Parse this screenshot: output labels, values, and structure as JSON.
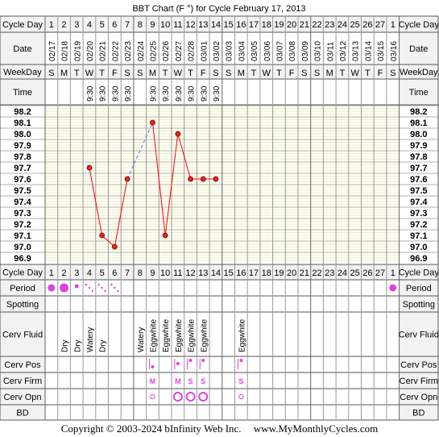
{
  "title": "BBT Chart (F °) for Cycle February 17, 2013",
  "labels": {
    "cycle_day": "Cycle Day",
    "date": "Date",
    "weekday": "WeekDay",
    "time": "Time",
    "period": "Period",
    "spotting": "Spotting",
    "cerv_fluid": "Cerv Fluid",
    "cerv_pos": "Cerv Pos",
    "cerv_firm": "Cerv Firm",
    "cerv_opn": "Cerv Opn",
    "bd": "BD"
  },
  "colors": {
    "grid_bg": "#FFFFF0",
    "header_bg": "#F2F2F2",
    "line": "#FF0000",
    "gap_line": "#6A6AE8",
    "point_fill": "#EE2222",
    "marker": "#DD44DD"
  },
  "days": [
    {
      "cd": "1",
      "date": "02/17",
      "wd": "S",
      "time": "",
      "period": "heavy",
      "fluid": "",
      "pos": "",
      "firm": "",
      "opn": ""
    },
    {
      "cd": "2",
      "date": "02/18",
      "wd": "M",
      "time": "",
      "period": "heavier",
      "fluid": "Dry",
      "pos": "",
      "firm": "",
      "opn": ""
    },
    {
      "cd": "3",
      "date": "02/19",
      "wd": "T",
      "time": "",
      "period": "medium",
      "fluid": "Dry",
      "pos": "",
      "firm": "",
      "opn": ""
    },
    {
      "cd": "4",
      "date": "02/20",
      "wd": "W",
      "time": "9:30",
      "period": "light",
      "fluid": "Watery",
      "pos": "",
      "firm": "",
      "opn": ""
    },
    {
      "cd": "5",
      "date": "02/21",
      "wd": "T",
      "time": "9:30",
      "period": "light",
      "fluid": "Dry",
      "pos": "",
      "firm": "",
      "opn": ""
    },
    {
      "cd": "6",
      "date": "02/22",
      "wd": "F",
      "time": "9:30",
      "period": "light",
      "fluid": "",
      "pos": "",
      "firm": "",
      "opn": ""
    },
    {
      "cd": "7",
      "date": "02/23",
      "wd": "S",
      "time": "9:30",
      "period": "",
      "fluid": "",
      "pos": "",
      "firm": "",
      "opn": ""
    },
    {
      "cd": "8",
      "date": "02/24",
      "wd": "S",
      "time": "",
      "period": "",
      "fluid": "Watery",
      "pos": "",
      "firm": "",
      "opn": ""
    },
    {
      "cd": "9",
      "date": "02/25",
      "wd": "M",
      "time": "9:30",
      "period": "",
      "fluid": "Eggwhite",
      "pos": "low",
      "firm": "M",
      "opn": "small"
    },
    {
      "cd": "10",
      "date": "02/26",
      "wd": "T",
      "time": "9:30",
      "period": "",
      "fluid": "Eggwhite",
      "pos": "",
      "firm": "",
      "opn": ""
    },
    {
      "cd": "11",
      "date": "02/27",
      "wd": "W",
      "time": "9:30",
      "period": "",
      "fluid": "Eggwhite",
      "pos": "mid",
      "firm": "M",
      "opn": "large"
    },
    {
      "cd": "12",
      "date": "02/28",
      "wd": "T",
      "time": "9:30",
      "period": "",
      "fluid": "Eggwhite",
      "pos": "high",
      "firm": "S",
      "opn": "large"
    },
    {
      "cd": "13",
      "date": "03/01",
      "wd": "F",
      "time": "9:30",
      "period": "",
      "fluid": "Eggwhite",
      "pos": "high",
      "firm": "S",
      "opn": "large"
    },
    {
      "cd": "14",
      "date": "03/02",
      "wd": "S",
      "time": "9:30",
      "period": "",
      "fluid": "",
      "pos": "",
      "firm": "",
      "opn": ""
    },
    {
      "cd": "15",
      "date": "03/03",
      "wd": "S",
      "time": "",
      "period": "",
      "fluid": "",
      "pos": "",
      "firm": "",
      "opn": ""
    },
    {
      "cd": "16",
      "date": "03/04",
      "wd": "M",
      "time": "",
      "period": "",
      "fluid": "Eggwhite",
      "pos": "high",
      "firm": "S",
      "opn": "small"
    },
    {
      "cd": "17",
      "date": "03/05",
      "wd": "T",
      "time": "",
      "period": "",
      "fluid": "",
      "pos": "",
      "firm": "",
      "opn": ""
    },
    {
      "cd": "18",
      "date": "03/06",
      "wd": "W",
      "time": "",
      "period": "",
      "fluid": "",
      "pos": "",
      "firm": "",
      "opn": ""
    },
    {
      "cd": "19",
      "date": "03/07",
      "wd": "T",
      "time": "",
      "period": "",
      "fluid": "",
      "pos": "",
      "firm": "",
      "opn": ""
    },
    {
      "cd": "20",
      "date": "03/08",
      "wd": "F",
      "time": "",
      "period": "",
      "fluid": "",
      "pos": "",
      "firm": "",
      "opn": ""
    },
    {
      "cd": "21",
      "date": "03/09",
      "wd": "S",
      "time": "",
      "period": "",
      "fluid": "",
      "pos": "",
      "firm": "",
      "opn": ""
    },
    {
      "cd": "22",
      "date": "03/10",
      "wd": "S",
      "time": "",
      "period": "",
      "fluid": "",
      "pos": "",
      "firm": "",
      "opn": ""
    },
    {
      "cd": "23",
      "date": "03/11",
      "wd": "M",
      "time": "",
      "period": "",
      "fluid": "",
      "pos": "",
      "firm": "",
      "opn": ""
    },
    {
      "cd": "24",
      "date": "03/12",
      "wd": "T",
      "time": "",
      "period": "",
      "fluid": "",
      "pos": "",
      "firm": "",
      "opn": ""
    },
    {
      "cd": "25",
      "date": "03/13",
      "wd": "W",
      "time": "",
      "period": "",
      "fluid": "",
      "pos": "",
      "firm": "",
      "opn": ""
    },
    {
      "cd": "26",
      "date": "03/14",
      "wd": "T",
      "time": "",
      "period": "",
      "fluid": "",
      "pos": "",
      "firm": "",
      "opn": ""
    },
    {
      "cd": "27",
      "date": "03/15",
      "wd": "F",
      "time": "",
      "period": "",
      "fluid": "",
      "pos": "",
      "firm": "",
      "opn": ""
    },
    {
      "cd": "1",
      "date": "03/16",
      "wd": "S",
      "time": "",
      "period": "heavy",
      "fluid": "",
      "pos": "",
      "firm": "",
      "opn": ""
    }
  ],
  "chart_data": {
    "type": "line",
    "title": "BBT Chart (F °) for Cycle February 17, 2013",
    "xlabel": "Cycle Day",
    "ylabel": "",
    "x": [
      4,
      5,
      6,
      7,
      9,
      10,
      11,
      12,
      13,
      14
    ],
    "y": [
      97.7,
      97.1,
      97.0,
      97.6,
      98.1,
      97.1,
      98.0,
      97.6,
      97.6,
      97.6
    ],
    "dashed_segments": [
      [
        7,
        9
      ]
    ],
    "ylim": [
      96.9,
      98.2
    ],
    "yticks": [
      "98.2",
      "98.1",
      "98.0",
      "97.9",
      "97.8",
      "97.7",
      "97.6",
      "97.5",
      "97.4",
      "97.3",
      "97.2",
      "97.1",
      "97.0",
      "96.9"
    ],
    "grid": true
  },
  "footer": {
    "copyright": "Copyright © 2003-2024 bInfinity Web Inc.",
    "site": "www.MyMonthlyCycles.com"
  }
}
